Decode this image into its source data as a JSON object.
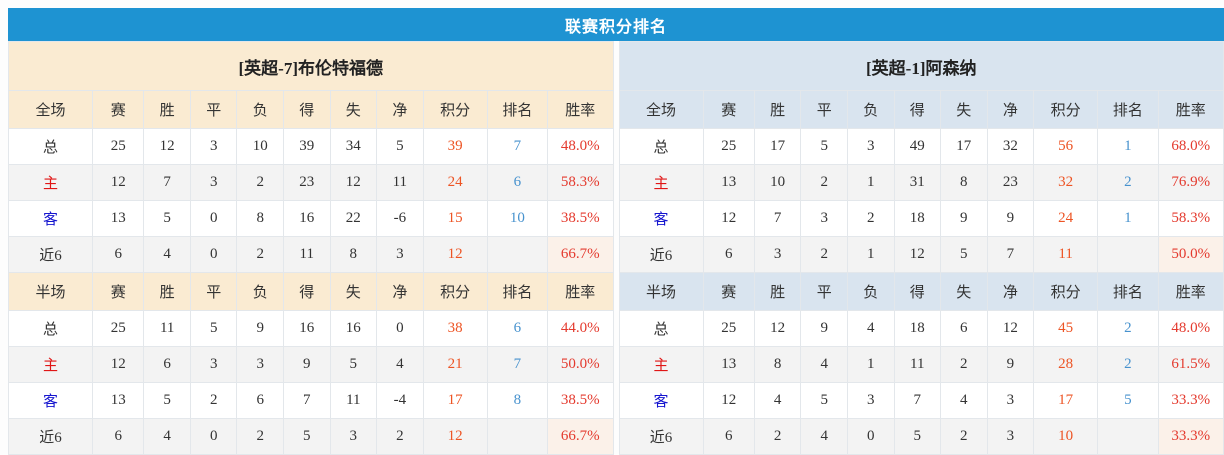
{
  "title": "联赛积分排名",
  "section_labels": {
    "full": "全场",
    "half": "半场"
  },
  "stat_columns": [
    "赛",
    "胜",
    "平",
    "负",
    "得",
    "失",
    "净",
    "积分",
    "排名",
    "胜率"
  ],
  "teams": [
    {
      "name": "[英超-7]布伦特福德",
      "theme": "cream",
      "full_rows": [
        {
          "label": "总",
          "type": "total",
          "stats": [
            "25",
            "12",
            "3",
            "10",
            "39",
            "34",
            "5"
          ],
          "points": "39",
          "rank": "7",
          "win_rate": "48.0%"
        },
        {
          "label": "主",
          "type": "home",
          "stats": [
            "12",
            "7",
            "3",
            "2",
            "23",
            "12",
            "11"
          ],
          "points": "24",
          "rank": "6",
          "win_rate": "58.3%"
        },
        {
          "label": "客",
          "type": "away",
          "stats": [
            "13",
            "5",
            "0",
            "8",
            "16",
            "22",
            "-6"
          ],
          "points": "15",
          "rank": "10",
          "win_rate": "38.5%"
        },
        {
          "label": "近6",
          "type": "recent6",
          "stats": [
            "6",
            "4",
            "0",
            "2",
            "11",
            "8",
            "3"
          ],
          "points": "12",
          "rank": "",
          "win_rate": "66.7%"
        }
      ],
      "half_rows": [
        {
          "label": "总",
          "type": "total",
          "stats": [
            "25",
            "11",
            "5",
            "9",
            "16",
            "16",
            "0"
          ],
          "points": "38",
          "rank": "6",
          "win_rate": "44.0%"
        },
        {
          "label": "主",
          "type": "home",
          "stats": [
            "12",
            "6",
            "3",
            "3",
            "9",
            "5",
            "4"
          ],
          "points": "21",
          "rank": "7",
          "win_rate": "50.0%"
        },
        {
          "label": "客",
          "type": "away",
          "stats": [
            "13",
            "5",
            "2",
            "6",
            "7",
            "11",
            "-4"
          ],
          "points": "17",
          "rank": "8",
          "win_rate": "38.5%"
        },
        {
          "label": "近6",
          "type": "recent6",
          "stats": [
            "6",
            "4",
            "0",
            "2",
            "5",
            "3",
            "2"
          ],
          "points": "12",
          "rank": "",
          "win_rate": "66.7%"
        }
      ]
    },
    {
      "name": "[英超-1]阿森纳",
      "theme": "blue",
      "full_rows": [
        {
          "label": "总",
          "type": "total",
          "stats": [
            "25",
            "17",
            "5",
            "3",
            "49",
            "17",
            "32"
          ],
          "points": "56",
          "rank": "1",
          "win_rate": "68.0%"
        },
        {
          "label": "主",
          "type": "home",
          "stats": [
            "13",
            "10",
            "2",
            "1",
            "31",
            "8",
            "23"
          ],
          "points": "32",
          "rank": "2",
          "win_rate": "76.9%"
        },
        {
          "label": "客",
          "type": "away",
          "stats": [
            "12",
            "7",
            "3",
            "2",
            "18",
            "9",
            "9"
          ],
          "points": "24",
          "rank": "1",
          "win_rate": "58.3%"
        },
        {
          "label": "近6",
          "type": "recent6",
          "stats": [
            "6",
            "3",
            "2",
            "1",
            "12",
            "5",
            "7"
          ],
          "points": "11",
          "rank": "",
          "win_rate": "50.0%"
        }
      ],
      "half_rows": [
        {
          "label": "总",
          "type": "total",
          "stats": [
            "25",
            "12",
            "9",
            "4",
            "18",
            "6",
            "12"
          ],
          "points": "45",
          "rank": "2",
          "win_rate": "48.0%"
        },
        {
          "label": "主",
          "type": "home",
          "stats": [
            "13",
            "8",
            "4",
            "1",
            "11",
            "2",
            "9"
          ],
          "points": "28",
          "rank": "2",
          "win_rate": "61.5%"
        },
        {
          "label": "客",
          "type": "away",
          "stats": [
            "12",
            "4",
            "5",
            "3",
            "7",
            "4",
            "3"
          ],
          "points": "17",
          "rank": "5",
          "win_rate": "33.3%"
        },
        {
          "label": "近6",
          "type": "recent6",
          "stats": [
            "6",
            "2",
            "4",
            "0",
            "5",
            "2",
            "3"
          ],
          "points": "10",
          "rank": "",
          "win_rate": "33.3%"
        }
      ]
    }
  ],
  "colors": {
    "title_bar": "#1E93D2",
    "cream_header": "#FAEBD2",
    "blue_header": "#D9E4EF",
    "points_text": "#ED5424",
    "rank_text": "#4792CE",
    "win_rate_text": "#E43A2E",
    "home_label": "#E01616",
    "away_label": "#1515CF",
    "alt_row_bg": "#F3F3F3",
    "recent_rate_cell_bg": "#FBF1E9"
  }
}
